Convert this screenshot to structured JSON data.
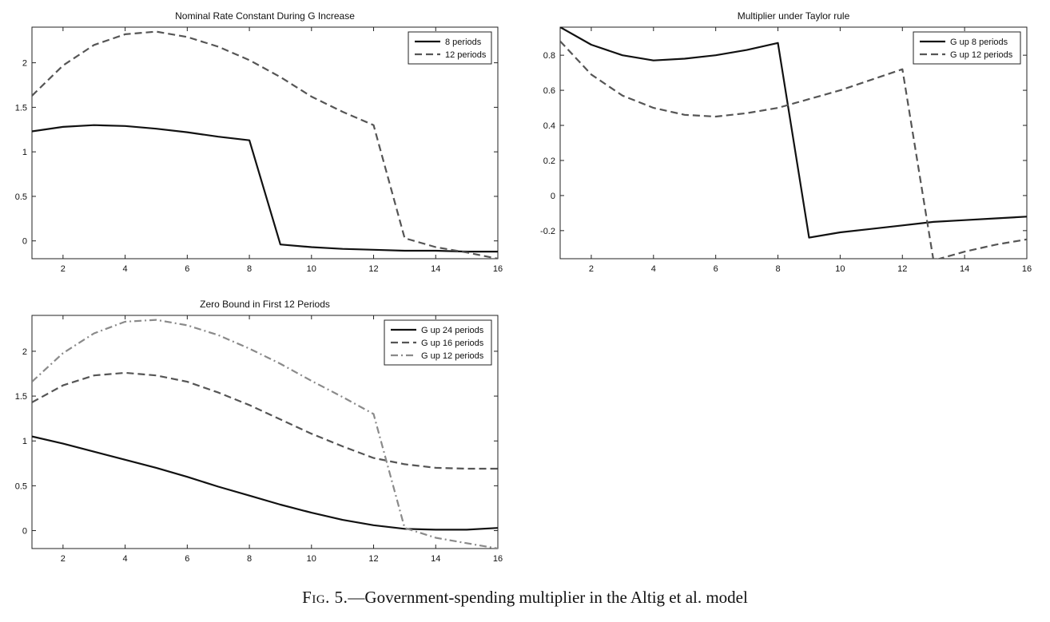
{
  "figure": {
    "caption_label": "Fig. 5.",
    "caption_text": "—Government-spending multiplier in the Altig et al. model"
  },
  "chart_data": [
    {
      "type": "line",
      "title": "Nominal Rate Constant During G Increase",
      "xlabel": "",
      "ylabel": "",
      "xlim": [
        1,
        16
      ],
      "ylim": [
        -0.2,
        2.4
      ],
      "xticks": [
        2,
        4,
        6,
        8,
        10,
        12,
        14,
        16
      ],
      "yticks": [
        0,
        0.5,
        1,
        1.5,
        2
      ],
      "ytick_labels": [
        "0",
        "0.5",
        "1",
        "1.5",
        "2"
      ],
      "legend_position": "top-right",
      "x": [
        1,
        2,
        3,
        4,
        5,
        6,
        7,
        8,
        9,
        10,
        11,
        12,
        13,
        14,
        15,
        16
      ],
      "series": [
        {
          "name": "8 periods",
          "color": "#111111",
          "dash": "solid",
          "values": [
            1.23,
            1.28,
            1.3,
            1.29,
            1.26,
            1.22,
            1.17,
            1.13,
            -0.04,
            -0.07,
            -0.09,
            -0.1,
            -0.11,
            -0.11,
            -0.12,
            -0.12
          ]
        },
        {
          "name": "12 periods",
          "color": "#555555",
          "dash": "dashed",
          "values": [
            1.63,
            1.97,
            2.2,
            2.32,
            2.35,
            2.29,
            2.18,
            2.03,
            1.84,
            1.62,
            1.45,
            1.3,
            0.03,
            -0.07,
            -0.13,
            -0.2
          ]
        }
      ]
    },
    {
      "type": "line",
      "title": "Multiplier under Taylor rule",
      "xlabel": "",
      "ylabel": "",
      "xlim": [
        1,
        16
      ],
      "ylim": [
        -0.36,
        0.96
      ],
      "xticks": [
        2,
        4,
        6,
        8,
        10,
        12,
        14,
        16
      ],
      "yticks": [
        -0.2,
        0,
        0.2,
        0.4,
        0.6,
        0.8
      ],
      "ytick_labels": [
        "-0.2",
        "0",
        "0.2",
        "0.4",
        "0.6",
        "0.8"
      ],
      "legend_position": "top-right",
      "x": [
        1,
        2,
        3,
        4,
        5,
        6,
        7,
        8,
        9,
        10,
        11,
        12,
        13,
        14,
        15,
        16
      ],
      "series": [
        {
          "name": "G up 8 periods",
          "color": "#111111",
          "dash": "solid",
          "values": [
            0.96,
            0.86,
            0.8,
            0.77,
            0.78,
            0.8,
            0.83,
            0.87,
            -0.24,
            -0.21,
            -0.19,
            -0.17,
            -0.15,
            -0.14,
            -0.13,
            -0.12
          ]
        },
        {
          "name": "G up 12 periods",
          "color": "#555555",
          "dash": "dashed",
          "values": [
            0.88,
            0.69,
            0.57,
            0.5,
            0.46,
            0.45,
            0.47,
            0.5,
            0.55,
            0.6,
            0.66,
            0.72,
            -0.37,
            -0.32,
            -0.28,
            -0.25
          ]
        }
      ]
    },
    {
      "type": "line",
      "title": "Zero Bound in First 12 Periods",
      "xlabel": "",
      "ylabel": "",
      "xlim": [
        1,
        16
      ],
      "ylim": [
        -0.2,
        2.4
      ],
      "xticks": [
        2,
        4,
        6,
        8,
        10,
        12,
        14,
        16
      ],
      "yticks": [
        0,
        0.5,
        1,
        1.5,
        2
      ],
      "ytick_labels": [
        "0",
        "0.5",
        "1",
        "1.5",
        "2"
      ],
      "legend_position": "top-right",
      "x": [
        1,
        2,
        3,
        4,
        5,
        6,
        7,
        8,
        9,
        10,
        11,
        12,
        13,
        14,
        15,
        16
      ],
      "series": [
        {
          "name": "G up 24 periods",
          "color": "#111111",
          "dash": "solid",
          "values": [
            1.05,
            0.97,
            0.88,
            0.79,
            0.7,
            0.6,
            0.49,
            0.39,
            0.29,
            0.2,
            0.12,
            0.06,
            0.02,
            0.01,
            0.01,
            0.03
          ]
        },
        {
          "name": "G up 16 periods",
          "color": "#555555",
          "dash": "dashed",
          "values": [
            1.43,
            1.62,
            1.73,
            1.76,
            1.73,
            1.66,
            1.54,
            1.4,
            1.24,
            1.08,
            0.94,
            0.81,
            0.74,
            0.7,
            0.69,
            0.69
          ]
        },
        {
          "name": "G up 12 periods",
          "color": "#8a8a8a",
          "dash": "dashdot",
          "values": [
            1.66,
            1.98,
            2.2,
            2.33,
            2.35,
            2.29,
            2.18,
            2.03,
            1.86,
            1.67,
            1.49,
            1.3,
            0.03,
            -0.08,
            -0.14,
            -0.2
          ]
        }
      ]
    }
  ]
}
